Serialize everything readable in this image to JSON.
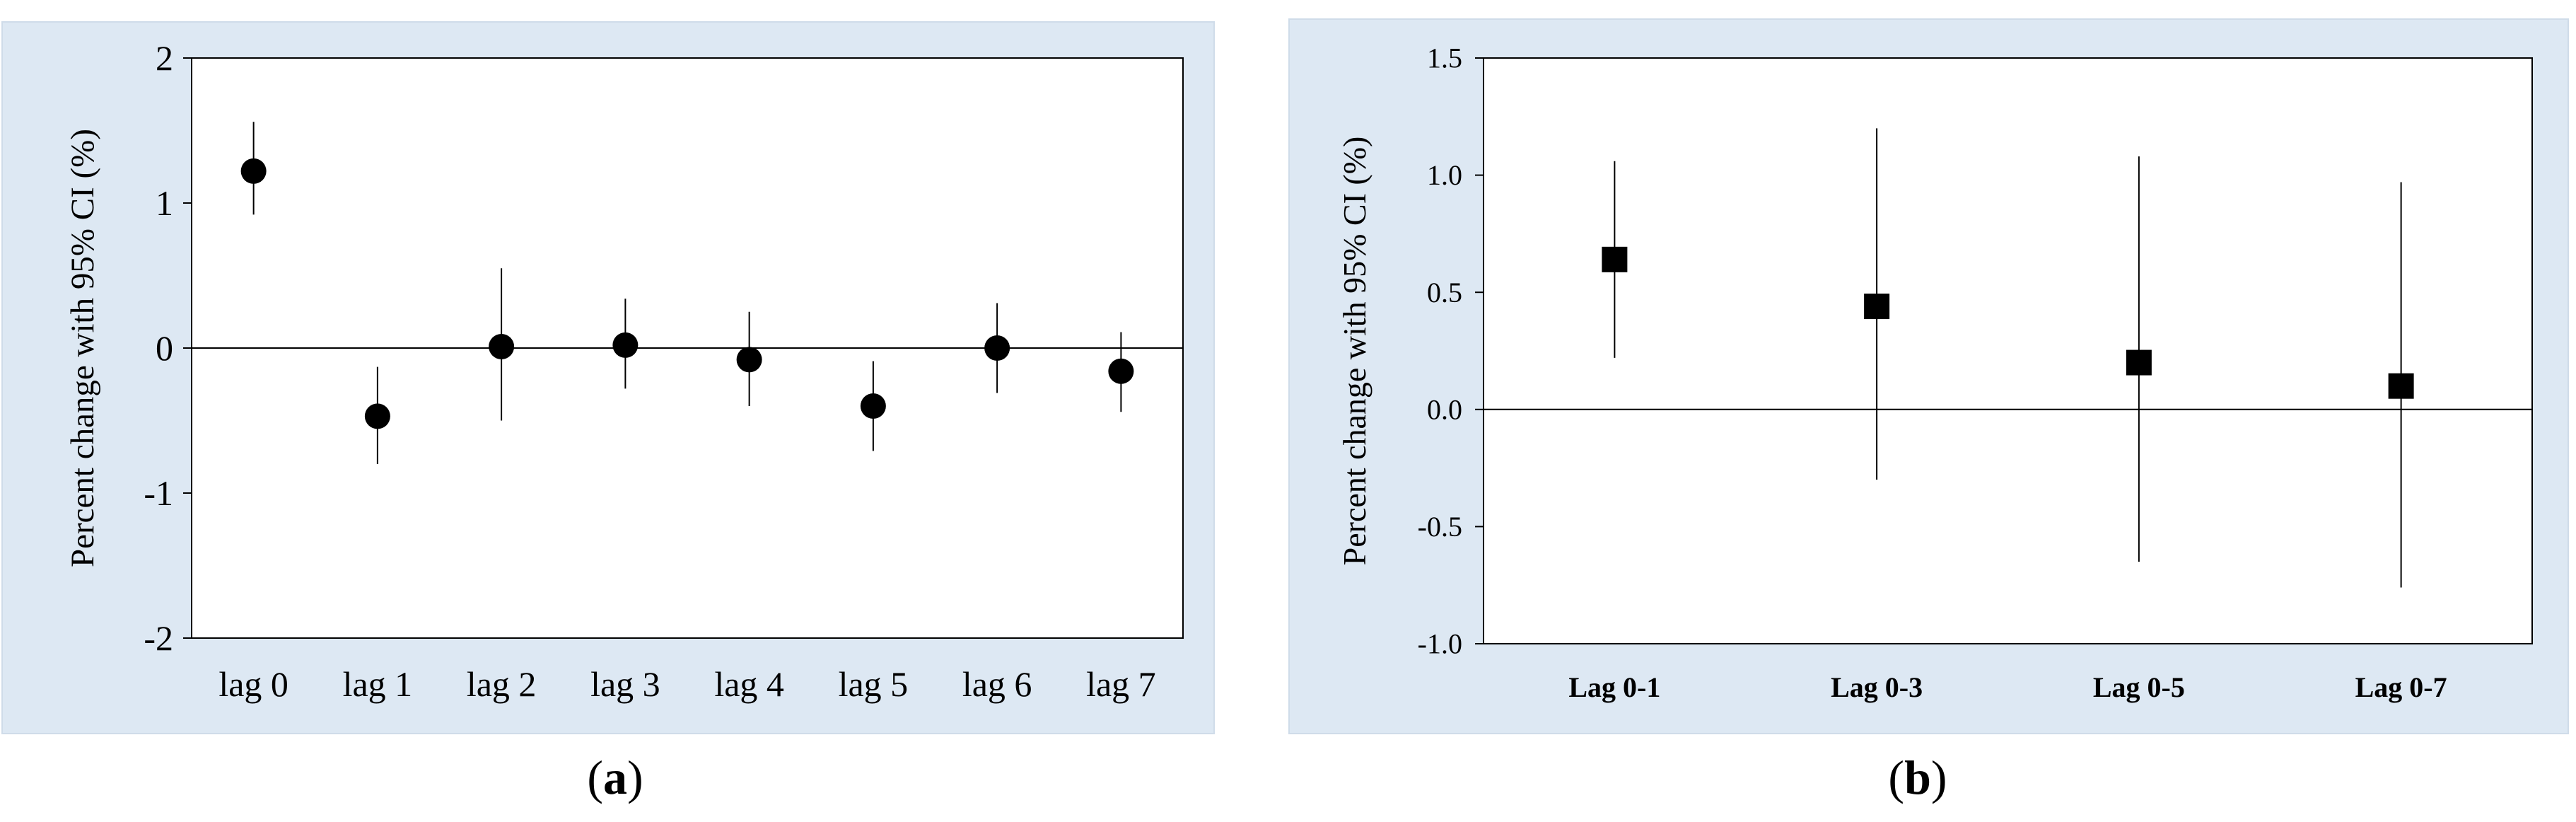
{
  "colors": {
    "panel_bg": "#dde8f3",
    "plot_bg": "#ffffff",
    "ink": "#000000"
  },
  "chart_data": [
    {
      "type": "scatter",
      "panel_label": "a",
      "marker": "circle",
      "ylabel": "Percent change with 95% CI (%)",
      "ylim": [
        -2,
        2
      ],
      "yticks": [
        "2",
        "1",
        "0",
        "-1",
        "-2"
      ],
      "ytick_values": [
        2,
        1,
        0,
        -1,
        -2
      ],
      "categories": [
        "lag 0",
        "lag 1",
        "lag 2",
        "lag 3",
        "lag 4",
        "lag 5",
        "lag 6",
        "lag 7"
      ],
      "values": [
        1.22,
        -0.47,
        0.01,
        0.02,
        -0.08,
        -0.4,
        0.0,
        -0.16
      ],
      "ci_low": [
        0.92,
        -0.8,
        -0.5,
        -0.28,
        -0.4,
        -0.71,
        -0.31,
        -0.44
      ],
      "ci_high": [
        1.56,
        -0.13,
        0.55,
        0.34,
        0.25,
        -0.09,
        0.31,
        0.11
      ],
      "grid": false
    },
    {
      "type": "scatter",
      "panel_label": "b",
      "marker": "square",
      "ylabel": "Percent change with 95% CI (%)",
      "ylim": [
        -1.0,
        1.5
      ],
      "yticks": [
        "1.5",
        "1.0",
        "0.5",
        "0.0",
        "-0.5",
        "-1.0"
      ],
      "ytick_values": [
        1.5,
        1.0,
        0.5,
        0.0,
        -0.5,
        -1.0
      ],
      "categories": [
        "Lag 0-1",
        "Lag 0-3",
        "Lag 0-5",
        "Lag 0-7"
      ],
      "values": [
        0.64,
        0.44,
        0.2,
        0.1
      ],
      "ci_low": [
        0.22,
        -0.3,
        -0.65,
        -0.76
      ],
      "ci_high": [
        1.06,
        1.2,
        1.08,
        0.97
      ],
      "grid": false
    }
  ]
}
